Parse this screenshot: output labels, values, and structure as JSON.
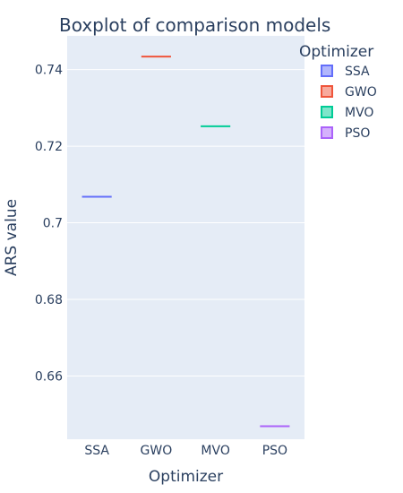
{
  "chart_data": {
    "type": "box",
    "title": "Boxplot of comparison models",
    "xlabel": "Optimizer",
    "ylabel": "ARS value",
    "categories": [
      "SSA",
      "GWO",
      "MVO",
      "PSO"
    ],
    "series": [
      {
        "name": "SSA",
        "color": "#636efa",
        "values": [
          0.7068
        ]
      },
      {
        "name": "GWO",
        "color": "#ef553b",
        "values": [
          0.7434
        ]
      },
      {
        "name": "MVO",
        "color": "#00cc96",
        "values": [
          0.7252
        ]
      },
      {
        "name": "PSO",
        "color": "#ab63fa",
        "values": [
          0.6469
        ]
      }
    ],
    "ylim": [
      0.6435,
      0.7488
    ],
    "yticks": [
      0.66,
      0.68,
      0.7,
      0.72,
      0.74
    ],
    "ytick_labels": [
      "0.66",
      "0.68",
      "0.7",
      "0.72",
      "0.74"
    ],
    "grid": true,
    "legend": {
      "title": "Optimizer",
      "position": "right"
    },
    "background": "#e5ecf6"
  }
}
